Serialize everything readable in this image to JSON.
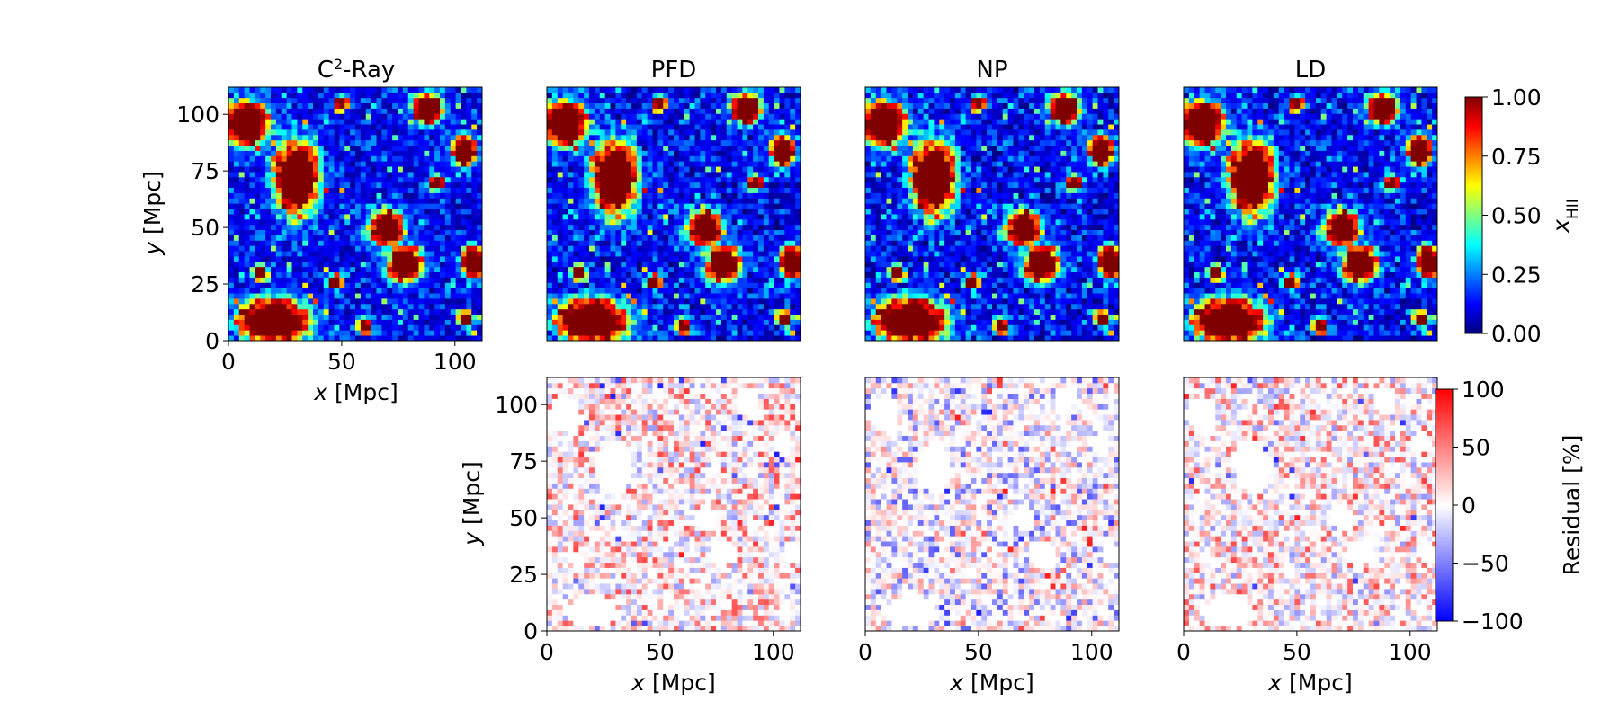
{
  "figure": {
    "colors": {
      "jet_colormap": [
        "#00007f",
        "#0000ff",
        "#007fff",
        "#00ffff",
        "#7fff7f",
        "#ffff00",
        "#ff7f00",
        "#ff0000",
        "#7f0000"
      ],
      "residual_colormap": [
        "#0000ff",
        "#ffffff",
        "#ff0000"
      ],
      "axis": "#000000"
    }
  },
  "chart_data": [
    {
      "type": "heatmap",
      "panel": "top-1",
      "title": "C",
      "title_sup": "2",
      "title_rest": "-Ray",
      "xlabel_var": "x",
      "xlabel_unit": "[Mpc]",
      "ylabel_var": "y",
      "ylabel_unit": "[Mpc]",
      "xlim": [
        0,
        112
      ],
      "ylim": [
        0,
        112
      ],
      "xticks": [
        0,
        50,
        100
      ],
      "xtick_labels": [
        "0",
        "50",
        "100"
      ],
      "yticks": [
        0,
        25,
        50,
        75,
        100
      ],
      "ytick_labels": [
        "0",
        "25",
        "50",
        "75",
        "100"
      ],
      "grid": false,
      "field_seed": 0,
      "field_jitter": 0
    },
    {
      "type": "heatmap",
      "panel": "top-2",
      "title": "PFD",
      "xlim": [
        0,
        112
      ],
      "ylim": [
        0,
        112
      ],
      "grid": false,
      "field_seed": 11,
      "field_jitter": 0.06
    },
    {
      "type": "heatmap",
      "panel": "top-3",
      "title": "NP",
      "xlim": [
        0,
        112
      ],
      "ylim": [
        0,
        112
      ],
      "grid": false,
      "field_seed": 23,
      "field_jitter": 0.06
    },
    {
      "type": "heatmap",
      "panel": "top-4",
      "title": "LD",
      "xlim": [
        0,
        112
      ],
      "ylim": [
        0,
        112
      ],
      "grid": false,
      "field_seed": 37,
      "field_jitter": 0.05
    },
    {
      "type": "heatmap",
      "panel": "bottom-2",
      "xlabel_var": "x",
      "xlabel_unit": "[Mpc]",
      "ylabel_var": "y",
      "ylabel_unit": "[Mpc]",
      "xlim": [
        0,
        112
      ],
      "ylim": [
        0,
        112
      ],
      "xticks": [
        0,
        50,
        100
      ],
      "xtick_labels": [
        "0",
        "50",
        "100"
      ],
      "yticks": [
        0,
        25,
        50,
        75,
        100
      ],
      "ytick_labels": [
        "0",
        "25",
        "50",
        "75",
        "100"
      ],
      "grid": false,
      "residual_seed": 101,
      "residual_bias": 0.12
    },
    {
      "type": "heatmap",
      "panel": "bottom-3",
      "xlabel_var": "x",
      "xlabel_unit": "[Mpc]",
      "xlim": [
        0,
        112
      ],
      "ylim": [
        0,
        112
      ],
      "xticks": [
        0,
        50,
        100
      ],
      "xtick_labels": [
        "0",
        "50",
        "100"
      ],
      "grid": false,
      "residual_seed": 202,
      "residual_bias": -0.08
    },
    {
      "type": "heatmap",
      "panel": "bottom-4",
      "xlabel_var": "x",
      "xlabel_unit": "[Mpc]",
      "xlim": [
        0,
        112
      ],
      "ylim": [
        0,
        112
      ],
      "xticks": [
        0,
        50,
        100
      ],
      "xtick_labels": [
        "0",
        "50",
        "100"
      ],
      "grid": false,
      "residual_seed": 303,
      "residual_bias": 0.1
    }
  ],
  "colorbars": {
    "top": {
      "label_var": "x",
      "label_sub": "HII",
      "range": [
        0,
        1
      ],
      "ticks": [
        0,
        0.25,
        0.5,
        0.75,
        1
      ],
      "tick_labels": [
        "0.00",
        "0.25",
        "0.50",
        "0.75",
        "1.00"
      ]
    },
    "bottom": {
      "label": "Residual [%]",
      "range": [
        -100,
        100
      ],
      "ticks": [
        -100,
        -50,
        0,
        50,
        100
      ],
      "tick_labels": [
        "−100",
        "−50",
        "0",
        "50",
        "100"
      ]
    }
  }
}
